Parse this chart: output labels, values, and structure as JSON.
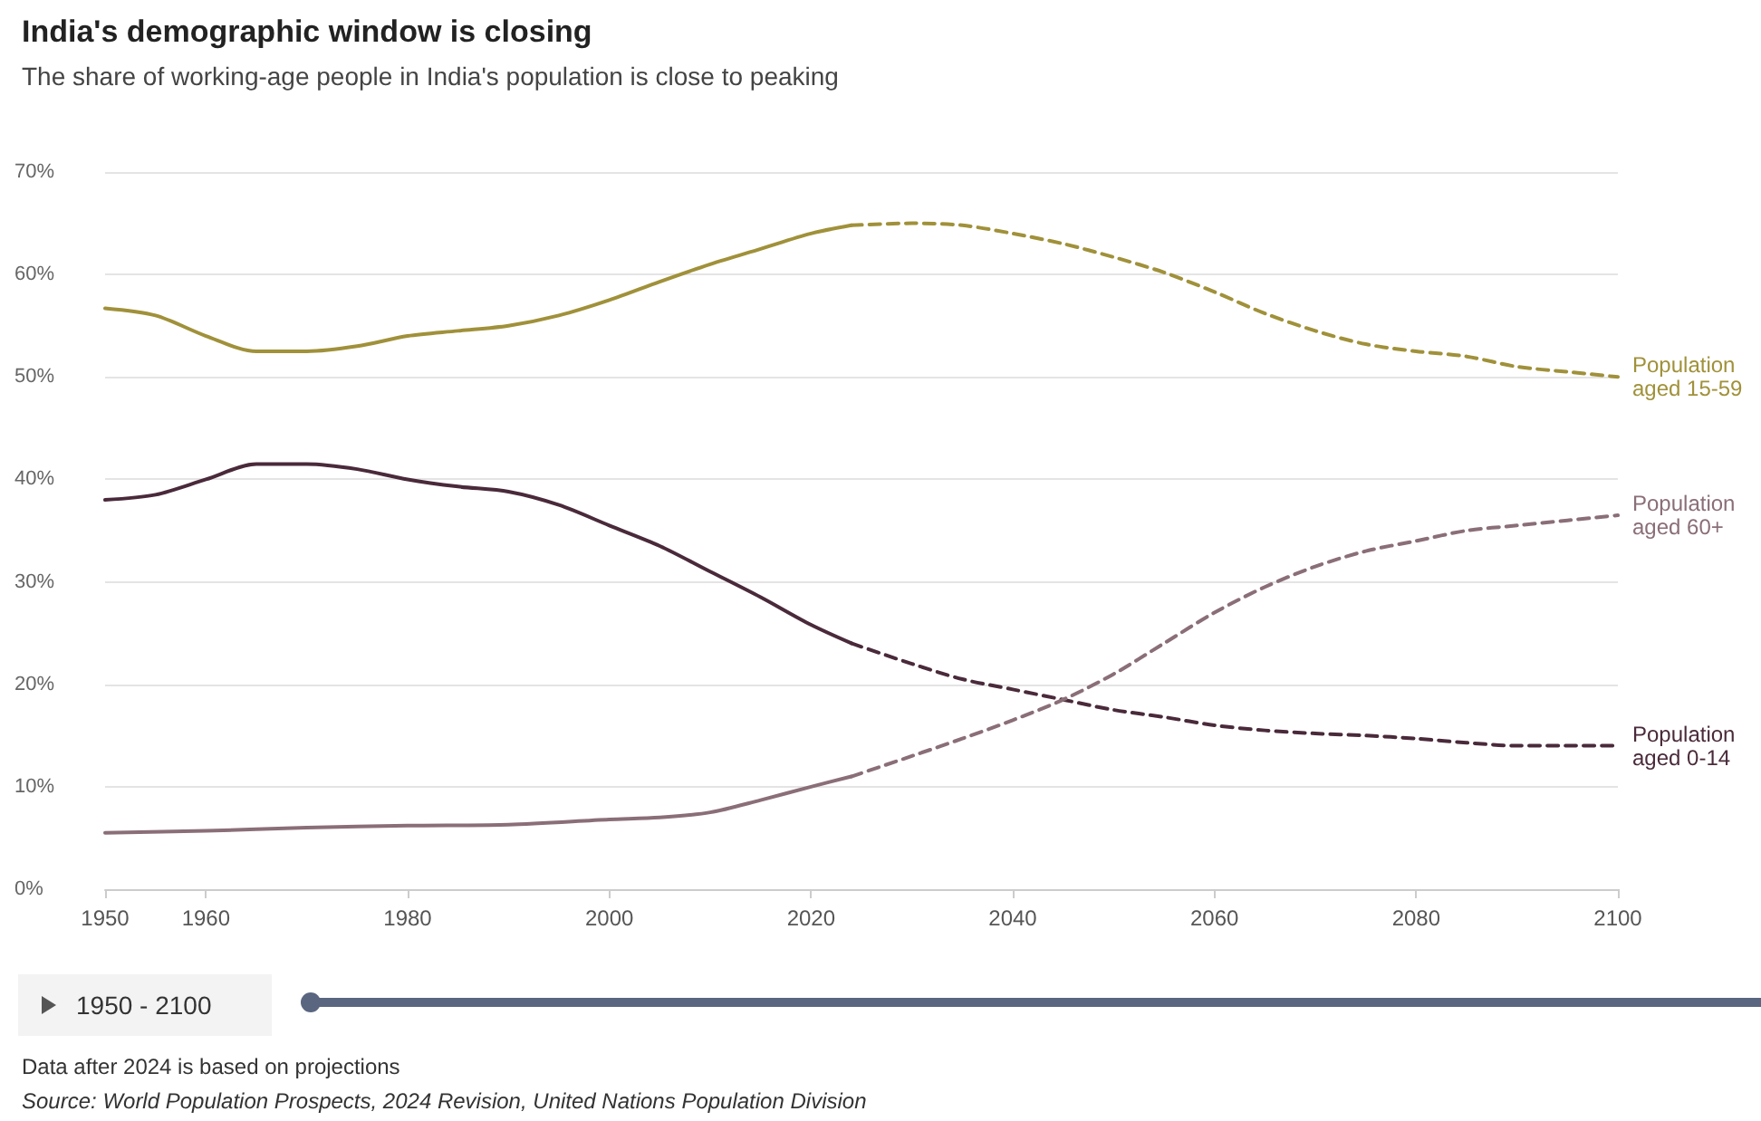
{
  "chart_data": {
    "type": "line",
    "title": "India's demographic window is closing",
    "subtitle": "The share of working-age people in India's population is close to peaking",
    "annotations": [
      "1950 - 2100",
      "Data after 2024 is based on projections",
      "Source: World Population Prospects, 2024 Revision, United Nations Population Division"
    ],
    "xlim": [
      1950,
      2100
    ],
    "xticks": [
      1950,
      1960,
      1980,
      2000,
      2020,
      2040,
      2060,
      2080,
      2100
    ],
    "ylim": [
      0,
      70
    ],
    "yticks": [
      {
        "value": 0,
        "label": "0%"
      },
      {
        "value": 10,
        "label": "10%"
      },
      {
        "value": 20,
        "label": "20%"
      },
      {
        "value": 30,
        "label": "30%"
      },
      {
        "value": 40,
        "label": "40%"
      },
      {
        "value": 50,
        "label": "50%"
      },
      {
        "value": 60,
        "label": "60%"
      },
      {
        "value": 70,
        "label": "70%"
      }
    ],
    "grid": "y",
    "legend": false,
    "marker": "none",
    "series": [
      {
        "color": "#a0913a",
        "line_style": "solid",
        "x": [
          1950,
          1955,
          1960,
          1965,
          1970,
          1975,
          1980,
          1985,
          1990,
          1995,
          2000,
          2005,
          2010,
          2015,
          2020,
          2024
        ],
        "values": [
          56.7,
          56,
          54,
          52.5,
          52.5,
          53,
          54,
          54.5,
          55,
          56,
          57.5,
          59.3,
          61,
          62.5,
          64,
          64.8
        ]
      },
      {
        "name": "Population aged 15-59",
        "color": "#a0913a",
        "line_style": "dashed",
        "x": [
          2024,
          2030,
          2035,
          2040,
          2045,
          2050,
          2055,
          2060,
          2065,
          2070,
          2075,
          2080,
          2085,
          2090,
          2095,
          2100
        ],
        "values": [
          64.8,
          65,
          64.8,
          64,
          63,
          61.7,
          60.2,
          58.3,
          56.2,
          54.5,
          53.2,
          52.5,
          52,
          51,
          50.5,
          50
        ]
      },
      {
        "color": "#4a2a3a",
        "line_style": "solid",
        "x": [
          1950,
          1955,
          1960,
          1965,
          1970,
          1975,
          1980,
          1985,
          1990,
          1995,
          2000,
          2005,
          2010,
          2015,
          2020,
          2024
        ],
        "values": [
          38,
          38.5,
          40,
          41.5,
          41.5,
          41,
          40,
          39.3,
          38.8,
          37.5,
          35.5,
          33.5,
          31,
          28.5,
          25.8,
          24
        ]
      },
      {
        "name": "Population aged 0-14",
        "color": "#4a2a3a",
        "line_style": "dashed",
        "x": [
          2024,
          2030,
          2035,
          2040,
          2045,
          2050,
          2055,
          2060,
          2065,
          2070,
          2075,
          2080,
          2085,
          2090,
          2095,
          2100
        ],
        "values": [
          24,
          22,
          20.5,
          19.5,
          18.5,
          17.5,
          16.8,
          16,
          15.5,
          15.2,
          15,
          14.7,
          14.3,
          14,
          14,
          14
        ]
      },
      {
        "color": "#8a6e78",
        "line_style": "solid",
        "x": [
          1950,
          1960,
          1970,
          1980,
          1990,
          2000,
          2005,
          2010,
          2015,
          2020,
          2024
        ],
        "values": [
          5.5,
          5.7,
          6,
          6.2,
          6.3,
          6.8,
          7,
          7.5,
          8.7,
          10,
          11
        ]
      },
      {
        "name": "Population aged 60+",
        "color": "#8a6e78",
        "line_style": "dashed",
        "x": [
          2024,
          2030,
          2035,
          2040,
          2045,
          2050,
          2055,
          2060,
          2065,
          2070,
          2075,
          2080,
          2085,
          2090,
          2095,
          2100
        ],
        "values": [
          11,
          13,
          14.7,
          16.5,
          18.5,
          21,
          24,
          27,
          29.5,
          31.5,
          33,
          34,
          35,
          35.5,
          36,
          36.5
        ]
      }
    ]
  }
}
